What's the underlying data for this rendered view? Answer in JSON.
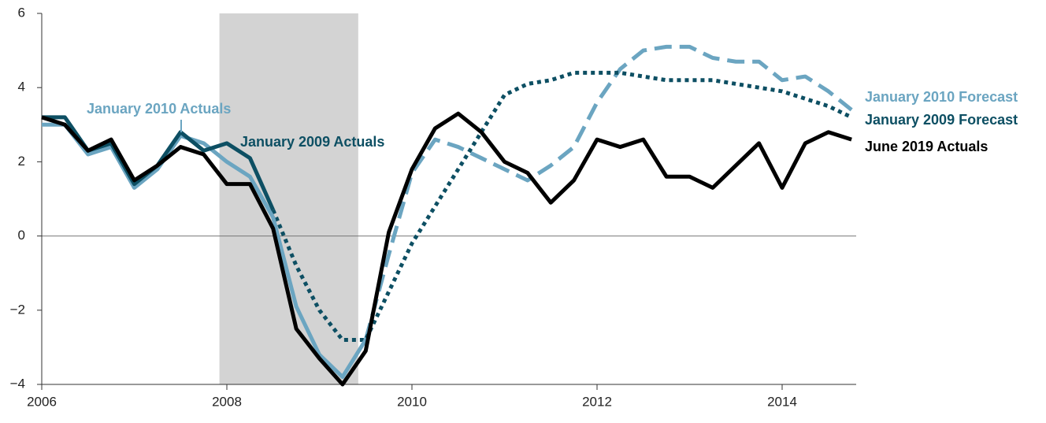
{
  "chart_data": {
    "type": "line",
    "x": [
      2006,
      2006.25,
      2006.5,
      2006.75,
      2007,
      2007.25,
      2007.5,
      2007.75,
      2008,
      2008.25,
      2008.5,
      2008.75,
      2009,
      2009.25,
      2009.5,
      2009.75,
      2010,
      2010.25,
      2010.5,
      2010.75,
      2011,
      2011.25,
      2011.5,
      2011.75,
      2012,
      2012.25,
      2012.5,
      2012.75,
      2013,
      2013.25,
      2013.5,
      2013.75,
      2014,
      2014.25,
      2014.5,
      2014.75
    ],
    "series": [
      {
        "name": "January 2010 Forecast",
        "color": "#6ba5c1",
        "dash": "dashed",
        "values": [
          null,
          null,
          null,
          null,
          null,
          null,
          null,
          null,
          null,
          null,
          null,
          null,
          null,
          null,
          -2.8,
          -0.5,
          1.7,
          2.6,
          2.4,
          2.1,
          1.8,
          1.5,
          1.9,
          2.4,
          3.6,
          4.5,
          5.0,
          5.1,
          5.1,
          4.8,
          4.7,
          4.7,
          4.2,
          4.3,
          3.9,
          3.4
        ]
      },
      {
        "name": "January 2009 Forecast",
        "color": "#0d4f63",
        "dash": "dotted",
        "values": [
          null,
          null,
          null,
          null,
          null,
          null,
          null,
          null,
          null,
          null,
          0.7,
          -0.8,
          -2.0,
          -2.8,
          -2.8,
          -1.5,
          -0.2,
          0.8,
          1.8,
          2.8,
          3.8,
          4.1,
          4.2,
          4.4,
          4.4,
          4.4,
          4.3,
          4.2,
          4.2,
          4.2,
          4.1,
          4.0,
          3.9,
          3.7,
          3.5,
          3.2
        ]
      },
      {
        "name": "January 2010 Actuals",
        "color": "#6ba5c1",
        "dash": "solid",
        "values": [
          3.0,
          3.0,
          2.2,
          2.4,
          1.3,
          1.8,
          2.7,
          2.5,
          2.0,
          1.6,
          0.5,
          -1.9,
          -3.2,
          -3.8,
          -2.8,
          null,
          null,
          null,
          null,
          null,
          null,
          null,
          null,
          null,
          null,
          null,
          null,
          null,
          null,
          null,
          null,
          null,
          null,
          null,
          null,
          null
        ]
      },
      {
        "name": "January 2009 Actuals",
        "color": "#0d4f63",
        "dash": "solid",
        "values": [
          3.2,
          3.2,
          2.3,
          2.5,
          1.4,
          1.9,
          2.8,
          2.3,
          2.5,
          2.1,
          0.7,
          null,
          null,
          null,
          null,
          null,
          null,
          null,
          null,
          null,
          null,
          null,
          null,
          null,
          null,
          null,
          null,
          null,
          null,
          null,
          null,
          null,
          null,
          null,
          null,
          null
        ]
      },
      {
        "name": "June 2019 Actuals",
        "color": "#000000",
        "dash": "solid",
        "values": [
          3.2,
          3.0,
          2.3,
          2.6,
          1.5,
          1.9,
          2.4,
          2.2,
          1.4,
          1.4,
          0.2,
          -2.5,
          -3.3,
          -4.0,
          -3.1,
          0.1,
          1.8,
          2.9,
          3.3,
          2.8,
          2.0,
          1.7,
          0.9,
          1.5,
          2.6,
          2.4,
          2.6,
          1.6,
          1.6,
          1.3,
          1.9,
          2.5,
          1.3,
          2.5,
          2.8,
          2.6
        ]
      }
    ],
    "recession": [
      2007.92,
      2009.42
    ],
    "xlim": [
      2006,
      2014.8
    ],
    "xticks": [
      2006,
      2008,
      2010,
      2012,
      2014
    ],
    "ylim": [
      -4,
      6
    ],
    "yticks": [
      {
        "value": -4,
        "label": "−4"
      },
      {
        "value": -2,
        "label": "−2"
      },
      0,
      2,
      4,
      6
    ]
  }
}
